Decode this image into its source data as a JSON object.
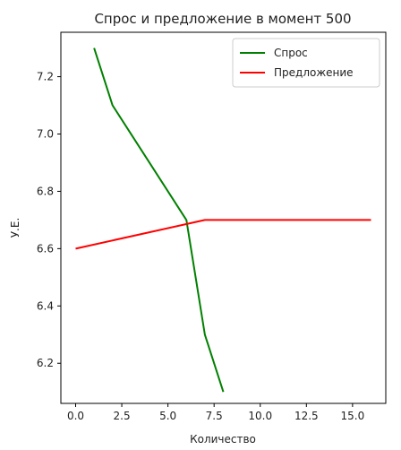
{
  "chart_data": {
    "type": "line",
    "title": "Спрос и предложение в момент 500",
    "xlabel": "Количество",
    "ylabel": "У.Е.",
    "xlim": [
      -0.8,
      16.8
    ],
    "ylim": [
      6.06,
      7.355
    ],
    "xticks": [
      0,
      2.5,
      5,
      7.5,
      10,
      12.5,
      15
    ],
    "xtick_labels": [
      "0.0",
      "2.5",
      "5.0",
      "7.5",
      "10.0",
      "12.5",
      "15.0"
    ],
    "yticks": [
      6.2,
      6.4,
      6.6,
      6.8,
      7.0,
      7.2
    ],
    "ytick_labels": [
      "6.2",
      "6.4",
      "6.6",
      "6.8",
      "7.0",
      "7.2"
    ],
    "grid": false,
    "legend_position": "top-right",
    "series": [
      {
        "name": "Спрос",
        "color": "#008000",
        "x": [
          1,
          2,
          6,
          7,
          8
        ],
        "y": [
          7.3,
          7.1,
          6.7,
          6.3,
          6.1
        ]
      },
      {
        "name": "Предложение",
        "color": "#ff0000",
        "x": [
          0,
          7,
          16
        ],
        "y": [
          6.6,
          6.7,
          6.7
        ]
      }
    ]
  }
}
